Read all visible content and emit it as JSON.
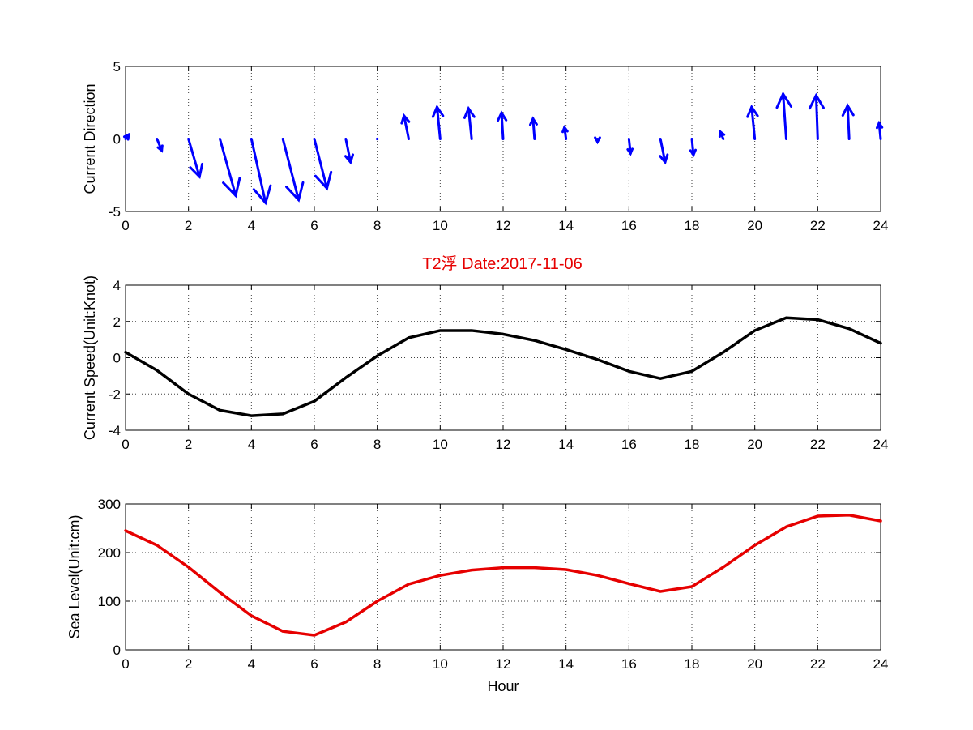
{
  "figure": {
    "title": "T2浮    Date:2017-11-06",
    "title_color": "#e60000"
  },
  "chart_data": [
    {
      "type": "quiver",
      "ylabel": "Current Direction",
      "xlabel": "",
      "xlim": [
        0,
        24
      ],
      "ylim": [
        -5,
        5
      ],
      "xticks": [
        0,
        2,
        4,
        6,
        8,
        10,
        12,
        14,
        16,
        18,
        20,
        22,
        24
      ],
      "yticks": [
        -5,
        0,
        5
      ],
      "grid": true,
      "color": "#0000ff",
      "x": [
        0,
        1,
        2,
        3,
        4,
        5,
        6,
        7,
        8,
        9,
        10,
        11,
        12,
        13,
        14,
        15,
        16,
        17,
        18,
        19,
        20,
        21,
        22,
        23,
        24
      ],
      "u": [
        0.1,
        0.15,
        0.35,
        0.5,
        0.45,
        0.5,
        0.4,
        0.15,
        0.0,
        -0.15,
        -0.1,
        -0.1,
        -0.05,
        -0.05,
        -0.05,
        0.0,
        0.05,
        0.15,
        0.05,
        -0.1,
        -0.1,
        -0.1,
        -0.05,
        -0.05,
        -0.05
      ],
      "v": [
        0.3,
        -0.8,
        -2.6,
        -3.9,
        -4.4,
        -4.2,
        -3.4,
        -1.6,
        -0.1,
        1.6,
        2.2,
        2.1,
        1.8,
        1.4,
        0.8,
        -0.2,
        -1.0,
        -1.6,
        -1.1,
        0.5,
        2.2,
        3.1,
        3.0,
        2.3,
        1.1
      ]
    },
    {
      "type": "line",
      "ylabel": "Current Speed(Unit:Knot)",
      "xlabel": "",
      "xlim": [
        0,
        24
      ],
      "ylim": [
        -4,
        4
      ],
      "xticks": [
        0,
        2,
        4,
        6,
        8,
        10,
        12,
        14,
        16,
        18,
        20,
        22,
        24
      ],
      "yticks": [
        -4,
        -2,
        0,
        2,
        4
      ],
      "grid": true,
      "color": "#000000",
      "x": [
        0,
        1,
        2,
        3,
        4,
        5,
        6,
        7,
        8,
        9,
        10,
        11,
        12,
        13,
        14,
        15,
        16,
        17,
        18,
        19,
        20,
        21,
        22,
        23,
        24
      ],
      "y": [
        0.3,
        -0.7,
        -2.0,
        -2.9,
        -3.2,
        -3.1,
        -2.4,
        -1.1,
        0.1,
        1.1,
        1.5,
        1.5,
        1.3,
        0.95,
        0.45,
        -0.1,
        -0.75,
        -1.15,
        -0.75,
        0.3,
        1.5,
        2.2,
        2.1,
        1.6,
        0.8
      ]
    },
    {
      "type": "line",
      "ylabel": "Sea Level(Unit:cm)",
      "xlabel": "Hour",
      "xlim": [
        0,
        24
      ],
      "ylim": [
        0,
        300
      ],
      "xticks": [
        0,
        2,
        4,
        6,
        8,
        10,
        12,
        14,
        16,
        18,
        20,
        22,
        24
      ],
      "yticks": [
        0,
        100,
        200,
        300
      ],
      "grid": true,
      "color": "#e60000",
      "x": [
        0,
        1,
        2,
        3,
        4,
        5,
        6,
        7,
        8,
        9,
        10,
        11,
        12,
        13,
        14,
        15,
        16,
        17,
        18,
        19,
        20,
        21,
        22,
        23,
        24
      ],
      "y": [
        245,
        215,
        170,
        118,
        70,
        38,
        30,
        57,
        100,
        135,
        153,
        164,
        169,
        169,
        165,
        153,
        136,
        120,
        130,
        170,
        215,
        253,
        275,
        277,
        265
      ]
    }
  ]
}
